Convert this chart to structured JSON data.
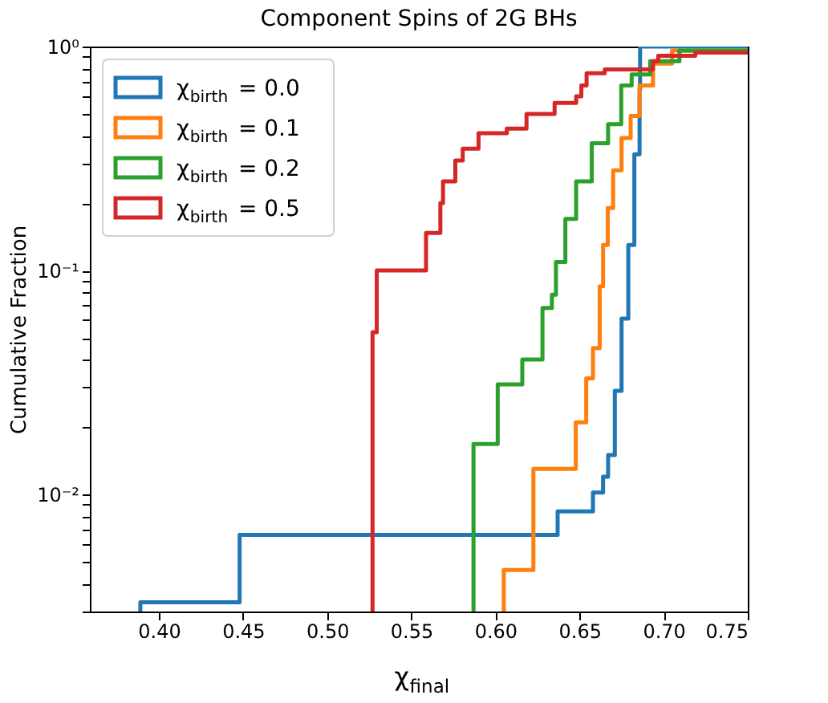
{
  "chart_data": {
    "type": "step",
    "title": "Component Spins of 2G BHs",
    "xlabel": "χ$_{final}$",
    "ylabel": "Cumulative Fraction",
    "xlim": [
      0.359,
      0.75
    ],
    "ylim": [
      0.003,
      1
    ],
    "log": "y",
    "grid": false,
    "legend": "top left",
    "line_style": "solid",
    "marker": "none",
    "xticks": [
      {
        "value": 0.4,
        "label": "0.40"
      },
      {
        "value": 0.45,
        "label": "0.45"
      },
      {
        "value": 0.5,
        "label": "0.50"
      },
      {
        "value": 0.55,
        "label": "0.55"
      },
      {
        "value": 0.6,
        "label": "0.60"
      },
      {
        "value": 0.65,
        "label": "0.65"
      },
      {
        "value": 0.7,
        "label": "0.70"
      },
      {
        "value": 0.75,
        "label": "0.75"
      }
    ],
    "yticks": [
      {
        "value": 0.003,
        "label": null
      },
      {
        "value": 0.004,
        "label": null
      },
      {
        "value": 0.005,
        "label": null
      },
      {
        "value": 0.006,
        "label": null
      },
      {
        "value": 0.007,
        "label": null
      },
      {
        "value": 0.008,
        "label": null
      },
      {
        "value": 0.009,
        "label": null
      },
      {
        "value": 0.01,
        "label": "10⁻²"
      },
      {
        "value": 0.02,
        "label": null
      },
      {
        "value": 0.03,
        "label": null
      },
      {
        "value": 0.04,
        "label": null
      },
      {
        "value": 0.05,
        "label": null
      },
      {
        "value": 0.06,
        "label": null
      },
      {
        "value": 0.07,
        "label": null
      },
      {
        "value": 0.08,
        "label": null
      },
      {
        "value": 0.09,
        "label": null
      },
      {
        "value": 0.1,
        "label": "10⁻¹"
      },
      {
        "value": 0.2,
        "label": null
      },
      {
        "value": 0.3,
        "label": null
      },
      {
        "value": 0.4,
        "label": null
      },
      {
        "value": 0.5,
        "label": null
      },
      {
        "value": 0.6,
        "label": null
      },
      {
        "value": 0.7,
        "label": null
      },
      {
        "value": 0.8,
        "label": null
      },
      {
        "value": 0.9,
        "label": null
      },
      {
        "value": 1,
        "label": "10⁰"
      }
    ],
    "series": [
      {
        "name": "χ$_{birth}$ = 0.0",
        "color": "#1f77b4",
        "x": [
          0.389,
          0.389,
          0.448,
          0.637,
          0.658,
          0.664,
          0.667,
          0.671,
          0.675,
          0.679,
          0.6826,
          0.6857,
          0.686,
          0.75
        ],
        "values": [
          0.003,
          0.0033,
          0.0066,
          0.0084,
          0.0102,
          0.012,
          0.015,
          0.029,
          0.061,
          0.13,
          0.33,
          0.64,
          1,
          1
        ]
      },
      {
        "name": "χ$_{birth}$ = 0.1",
        "color": "#ff7f0e",
        "x": [
          0.605,
          0.605,
          0.6226,
          0.6478,
          0.654,
          0.658,
          0.662,
          0.664,
          0.6668,
          0.67,
          0.675,
          0.6804,
          0.6857,
          0.6937,
          0.705,
          0.75
        ],
        "values": [
          0.003,
          0.0046,
          0.013,
          0.021,
          0.033,
          0.045,
          0.085,
          0.13,
          0.19,
          0.28,
          0.39,
          0.49,
          0.67,
          0.84,
          0.96,
          0.96
        ]
      },
      {
        "name": "χ$_{birth}$ = 0.2",
        "color": "#2ca02c",
        "x": [
          0.587,
          0.587,
          0.6014,
          0.616,
          0.628,
          0.6336,
          0.636,
          0.6416,
          0.648,
          0.6573,
          0.667,
          0.6748,
          0.681,
          0.692,
          0.7094,
          0.75
        ],
        "values": [
          0.003,
          0.0168,
          0.031,
          0.04,
          0.068,
          0.078,
          0.109,
          0.17,
          0.25,
          0.37,
          0.45,
          0.67,
          0.75,
          0.86,
          0.96,
          0.96
        ]
      },
      {
        "name": "χ$_{birth}$ = 0.5",
        "color": "#d62728",
        "x": [
          0.527,
          0.527,
          0.5295,
          0.5588,
          0.5673,
          0.5689,
          0.5762,
          0.5806,
          0.59,
          0.6068,
          0.6185,
          0.6352,
          0.648,
          0.6511,
          0.6542,
          0.665,
          0.6937,
          0.6968,
          0.7188,
          0.75
        ],
        "values": [
          0.003,
          0.053,
          0.1,
          0.147,
          0.2,
          0.25,
          0.31,
          0.35,
          0.41,
          0.43,
          0.5,
          0.56,
          0.6,
          0.67,
          0.76,
          0.79,
          0.86,
          0.91,
          0.94,
          0.94
        ]
      }
    ]
  }
}
